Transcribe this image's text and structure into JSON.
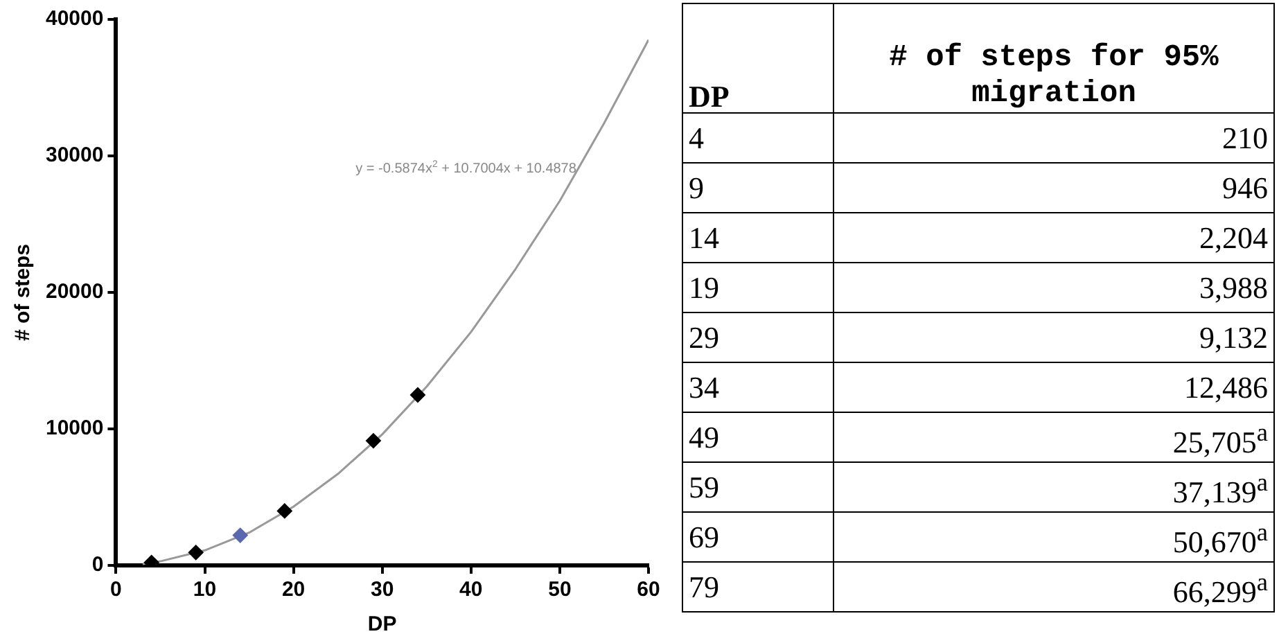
{
  "chart_data": [
    {
      "type": "scatter",
      "xlabel": "DP",
      "ylabel": "# of steps",
      "x": [
        4,
        9,
        14,
        19,
        29,
        34
      ],
      "values": [
        210,
        946,
        2204,
        3988,
        9132,
        12486
      ],
      "colors": [
        "#000000",
        "#000000",
        "#5a68b0",
        "#000000",
        "#000000",
        "#000000"
      ],
      "marker": "diamond",
      "series": [
        {
          "type": "line",
          "marker": "none",
          "color": "#999999",
          "x": [
            3,
            5,
            10,
            15,
            20,
            25,
            30,
            35,
            40,
            45,
            50,
            55,
            60
          ],
          "values": [
            100,
            300,
            1100,
            2400,
            4300,
            6700,
            9600,
            13100,
            17100,
            21700,
            26700,
            32400,
            38500
          ]
        }
      ],
      "xlim": [
        0,
        60
      ],
      "xticks": [
        0,
        10,
        20,
        30,
        40,
        50,
        60
      ],
      "ylim": [
        0,
        40000
      ],
      "yticks": [
        0,
        10000,
        20000,
        30000,
        40000
      ],
      "grid": false,
      "legend": false,
      "annotations": [
        "y = -0.5874x$^{2}$ + 10.7004x + 10.4878"
      ]
    },
    {
      "type": "other",
      "xlabel": "DP",
      "ylabel": "# of steps for 95% migration",
      "categories": [
        "4",
        "9",
        "14",
        "19",
        "29",
        "34",
        "49",
        "59",
        "69",
        "79"
      ],
      "value_labels": [
        "210",
        "946",
        "2,204",
        "3,988",
        "9,132",
        "12,486",
        "25,705$^{a}$",
        "37,139$^{a}$",
        "50,670$^{a}$",
        "66,299$^{a}$"
      ]
    }
  ]
}
